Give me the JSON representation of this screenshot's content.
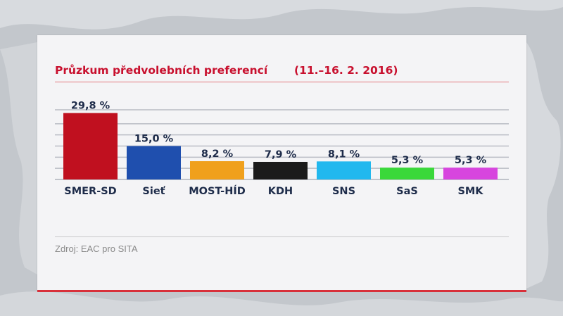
{
  "header": {
    "title": "Průzkum předvolebních preferencí",
    "date": "(11.–16. 2. 2016)"
  },
  "footer": {
    "source": "Zdroj: EAC pro SITA"
  },
  "chart_data": {
    "type": "bar",
    "title": "Průzkum předvolebních preferencí",
    "subtitle": "(11.–16. 2. 2016)",
    "categories": [
      "SMER-SD",
      "Sieť",
      "MOST-HÍD",
      "KDH",
      "SNS",
      "SaS",
      "SMK"
    ],
    "values": [
      29.8,
      15.0,
      8.2,
      7.9,
      8.1,
      5.3,
      5.3
    ],
    "value_labels": [
      "29,8 %",
      "15,0 %",
      "8,2 %",
      "7,9 %",
      "8,1 %",
      "5,3 %",
      "5,3 %"
    ],
    "colors": [
      "#c0101f",
      "#1f4fae",
      "#f0a01c",
      "#1b1b1b",
      "#21b8ee",
      "#3ad83a",
      "#d745de"
    ],
    "ylim": [
      0,
      30
    ],
    "grid": true,
    "legend": "none"
  }
}
